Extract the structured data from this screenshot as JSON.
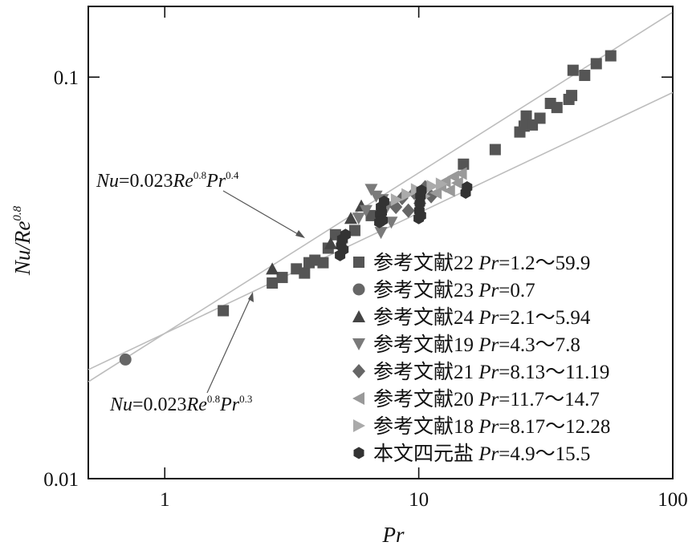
{
  "chart_data": {
    "type": "scatter",
    "x_scale": "log",
    "y_scale": "log",
    "xlim": [
      0.5,
      100
    ],
    "ylim": [
      0.01,
      0.15
    ],
    "xlabel": "Pr",
    "ylabel": "Nu/Re0.8",
    "ylabel_parts": {
      "base": "Nu/Re",
      "sup": "0.8"
    },
    "x_ticks": [
      {
        "value": 1,
        "label": "1"
      },
      {
        "value": 10,
        "label": "10"
      },
      {
        "value": 100,
        "label": "100"
      }
    ],
    "y_ticks": [
      {
        "value": 0.01,
        "label": "0.01"
      },
      {
        "value": 0.1,
        "label": "0.1"
      }
    ],
    "grid": false,
    "legend_position": "bottom-right",
    "reference_lines": [
      {
        "label_parts": {
          "a": "Nu",
          "b": "=0.023",
          "c": "Re",
          "d": "0.8",
          "e": "Pr",
          "f": "0.4"
        },
        "coef": 0.023,
        "exponent": 0.4,
        "color": "#bdbdbd"
      },
      {
        "label_parts": {
          "a": "Nu",
          "b": "=0.023",
          "c": "Re",
          "d": "0.8",
          "e": "Pr",
          "f": "0.3"
        },
        "coef": 0.023,
        "exponent": 0.3,
        "color": "#bdbdbd"
      }
    ],
    "series": [
      {
        "name": "参考文献22 Pr=1.2～59.9",
        "name_parts": {
          "ref": "参考文献22 ",
          "pr": "Pr",
          "range": "=1.2～59.9"
        },
        "marker": "square",
        "color": "#555555",
        "points": [
          [
            1.7,
            0.0262
          ],
          [
            2.65,
            0.0307
          ],
          [
            2.9,
            0.0317
          ],
          [
            3.3,
            0.0333
          ],
          [
            3.55,
            0.0325
          ],
          [
            3.7,
            0.0345
          ],
          [
            3.9,
            0.035
          ],
          [
            4.2,
            0.0345
          ],
          [
            4.4,
            0.0375
          ],
          [
            4.7,
            0.0405
          ],
          [
            5.0,
            0.0398
          ],
          [
            5.6,
            0.0415
          ],
          [
            6.5,
            0.0452
          ],
          [
            15.0,
            0.0607
          ],
          [
            20.0,
            0.066
          ],
          [
            25.0,
            0.073
          ],
          [
            26.0,
            0.0755
          ],
          [
            26.5,
            0.08
          ],
          [
            28.0,
            0.076
          ],
          [
            30.0,
            0.079
          ],
          [
            33.0,
            0.086
          ],
          [
            35.0,
            0.084
          ],
          [
            39.0,
            0.088
          ],
          [
            40.0,
            0.09
          ],
          [
            40.5,
            0.104
          ],
          [
            45.0,
            0.101
          ],
          [
            50.0,
            0.108
          ],
          [
            57.0,
            0.113
          ]
        ]
      },
      {
        "name": "参考文献23 Pr=0.7",
        "name_parts": {
          "ref": "参考文献23 ",
          "pr": "Pr",
          "range": "=0.7"
        },
        "marker": "circle",
        "color": "#666666",
        "points": [
          [
            0.7,
            0.0198
          ]
        ]
      },
      {
        "name": "参考文献24 Pr=2.1～5.94",
        "name_parts": {
          "ref": "参考文献24 ",
          "pr": "Pr",
          "range": "=2.1～5.94"
        },
        "marker": "triangle-up",
        "color": "#444444",
        "points": [
          [
            2.65,
            0.0333
          ],
          [
            4.5,
            0.0385
          ],
          [
            5.4,
            0.0445
          ],
          [
            5.94,
            0.0478
          ]
        ]
      },
      {
        "name": "参考文献19 Pr=4.3～7.8",
        "name_parts": {
          "ref": "参考文献19 ",
          "pr": "Pr",
          "range": "=4.3～7.8"
        },
        "marker": "triangle-down",
        "color": "#7a7a7a",
        "points": [
          [
            5.8,
            0.0445
          ],
          [
            6.2,
            0.0465
          ],
          [
            6.5,
            0.0525
          ],
          [
            6.8,
            0.0505
          ],
          [
            7.1,
            0.041
          ],
          [
            7.2,
            0.0495
          ],
          [
            7.5,
            0.0475
          ],
          [
            7.8,
            0.0435
          ]
        ]
      },
      {
        "name": "参考文献21 Pr=8.13～11.19",
        "name_parts": {
          "ref": "参考文献21 ",
          "pr": "Pr",
          "range": "=8.13～11.19"
        },
        "marker": "diamond",
        "color": "#666666",
        "points": [
          [
            8.13,
            0.0475
          ],
          [
            8.6,
            0.05
          ],
          [
            9.1,
            0.0465
          ],
          [
            9.6,
            0.0515
          ],
          [
            10.1,
            0.0485
          ],
          [
            10.6,
            0.0532
          ],
          [
            11.19,
            0.0505
          ]
        ]
      },
      {
        "name": "参考文献20 Pr=11.7～14.7",
        "name_parts": {
          "ref": "参考文献20 ",
          "pr": "Pr",
          "range": "=11.7～14.7"
        },
        "marker": "triangle-left",
        "color": "#999999",
        "points": [
          [
            11.7,
            0.0515
          ],
          [
            12.2,
            0.0535
          ],
          [
            12.7,
            0.055
          ],
          [
            13.2,
            0.0522
          ],
          [
            13.7,
            0.0565
          ],
          [
            14.2,
            0.0545
          ],
          [
            14.7,
            0.0575
          ]
        ]
      },
      {
        "name": "参考文献18 Pr=8.17～12.28",
        "name_parts": {
          "ref": "参考文献18 ",
          "pr": "Pr",
          "range": "=8.17～12.28"
        },
        "marker": "triangle-right",
        "color": "#aaaaaa",
        "points": [
          [
            8.17,
            0.0495
          ],
          [
            9.0,
            0.051
          ],
          [
            9.8,
            0.0525
          ],
          [
            10.5,
            0.0505
          ],
          [
            11.3,
            0.0535
          ],
          [
            12.28,
            0.0542
          ]
        ]
      },
      {
        "name": "本文四元盐 Pr=4.9～15.5",
        "name_parts": {
          "ref": "本文四元盐 ",
          "pr": "Pr",
          "range": "=4.9～15.5"
        },
        "marker": "hexagon",
        "color": "#333333",
        "points": [
          [
            4.9,
            0.036
          ],
          [
            4.95,
            0.038
          ],
          [
            5.0,
            0.0395
          ],
          [
            5.05,
            0.0372
          ],
          [
            5.15,
            0.0405
          ],
          [
            7.0,
            0.0435
          ],
          [
            7.05,
            0.0455
          ],
          [
            7.1,
            0.0475
          ],
          [
            7.15,
            0.046
          ],
          [
            7.2,
            0.044
          ],
          [
            7.3,
            0.049
          ],
          [
            10.0,
            0.0445
          ],
          [
            10.05,
            0.0465
          ],
          [
            10.1,
            0.0485
          ],
          [
            10.15,
            0.0505
          ],
          [
            10.2,
            0.0452
          ],
          [
            10.25,
            0.0522
          ],
          [
            15.3,
            0.0515
          ],
          [
            15.5,
            0.0532
          ]
        ]
      }
    ]
  }
}
